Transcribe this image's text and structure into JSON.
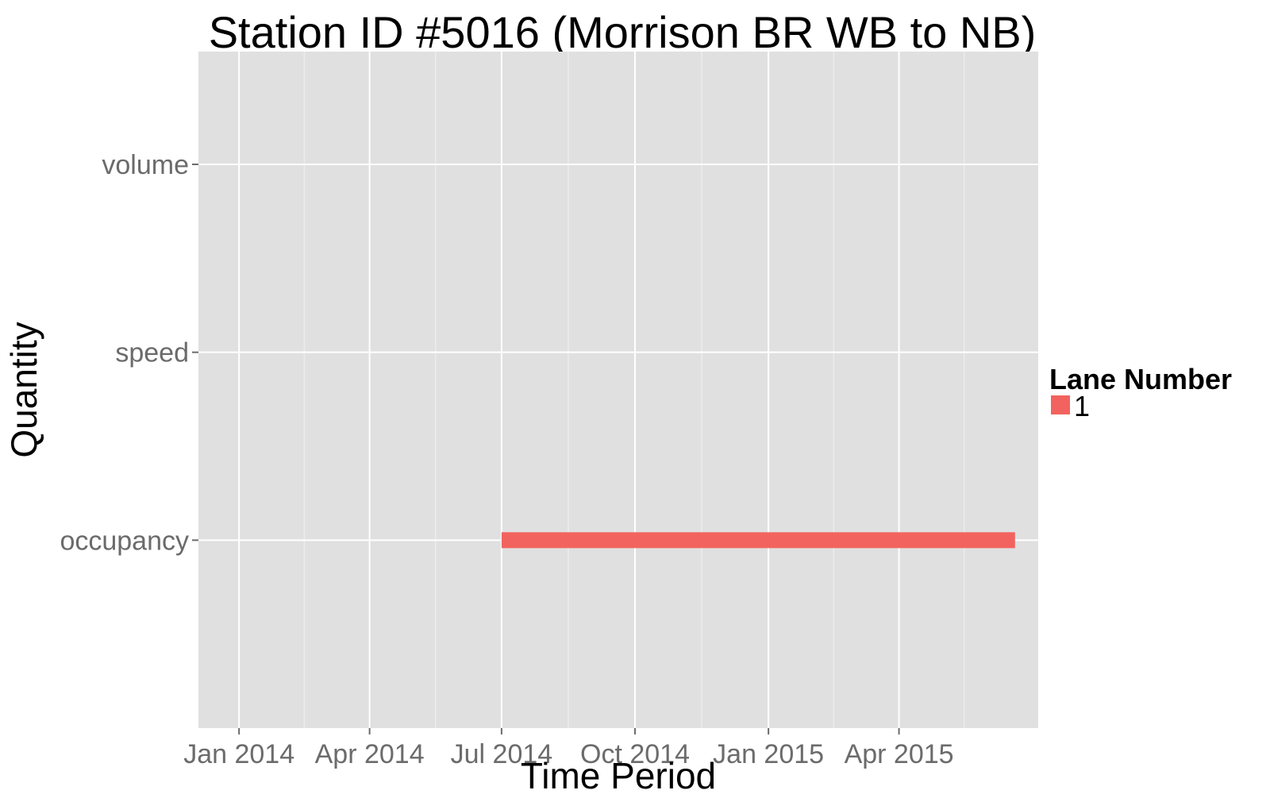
{
  "chart_data": {
    "type": "bar",
    "title": "Station ID #5016 (Morrison BR WB to NB)",
    "xlabel": "Time Period",
    "ylabel": "Quantity",
    "x_ticks": [
      "Jan 2014",
      "Apr 2014",
      "Jul 2014",
      "Oct 2014",
      "Jan 2015",
      "Apr 2015"
    ],
    "x_tick_dates": [
      "2014-01-01",
      "2014-04-01",
      "2014-07-01",
      "2014-10-01",
      "2015-01-01",
      "2015-04-01"
    ],
    "xlim": [
      "2013-12-04",
      "2015-07-06"
    ],
    "categories": [
      "volume",
      "speed",
      "occupancy"
    ],
    "grid": true,
    "legend": {
      "title": "Lane Number",
      "position": "right"
    },
    "series": [
      {
        "name": "1",
        "color": "#f2635f",
        "segments": [
          {
            "category": "occupancy",
            "start": "2014-07-01",
            "end": "2015-06-20"
          }
        ]
      }
    ]
  }
}
